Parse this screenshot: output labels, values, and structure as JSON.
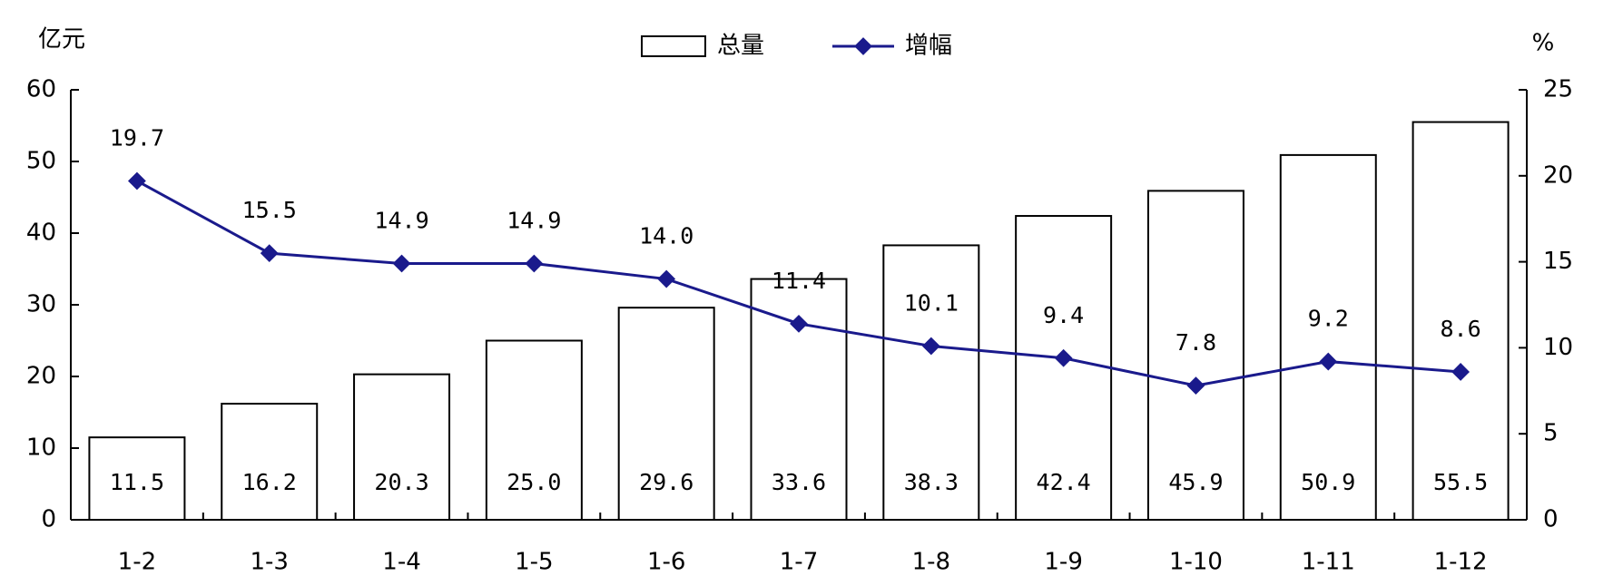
{
  "chart_data": {
    "type": "bar-line",
    "y_label": "亿元",
    "y2_label": "%",
    "categories": [
      "1-2",
      "1-3",
      "1-4",
      "1-5",
      "1-6",
      "1-7",
      "1-8",
      "1-9",
      "1-10",
      "1-11",
      "1-12"
    ],
    "series": [
      {
        "name": "总量",
        "type": "bar",
        "color": "#ffffff",
        "stroke": "#000000",
        "values": [
          11.5,
          16.2,
          20.3,
          25.0,
          29.6,
          33.6,
          38.3,
          42.4,
          45.9,
          50.9,
          55.5
        ],
        "value_labels": [
          "11.5",
          "16.2",
          "20.3",
          "25.0",
          "29.6",
          "33.6",
          "38.3",
          "42.4",
          "45.9",
          "50.9",
          "55.5"
        ]
      },
      {
        "name": "增幅",
        "type": "line",
        "axis": "y2",
        "color": "#1a1a8c",
        "values": [
          19.7,
          15.5,
          14.9,
          14.9,
          14.0,
          11.4,
          10.1,
          9.4,
          7.8,
          9.2,
          8.6
        ],
        "value_labels": [
          "19.7",
          "15.5",
          "14.9",
          "14.9",
          "14.0",
          "11.4",
          "10.1",
          "9.4",
          "7.8",
          "9.2",
          "8.6"
        ]
      }
    ],
    "ylim": [
      0,
      60
    ],
    "yticks": [
      0,
      10,
      20,
      30,
      40,
      50,
      60
    ],
    "y2lim": [
      0,
      25
    ],
    "y2ticks": [
      0,
      5,
      10,
      15,
      20,
      25
    ]
  }
}
